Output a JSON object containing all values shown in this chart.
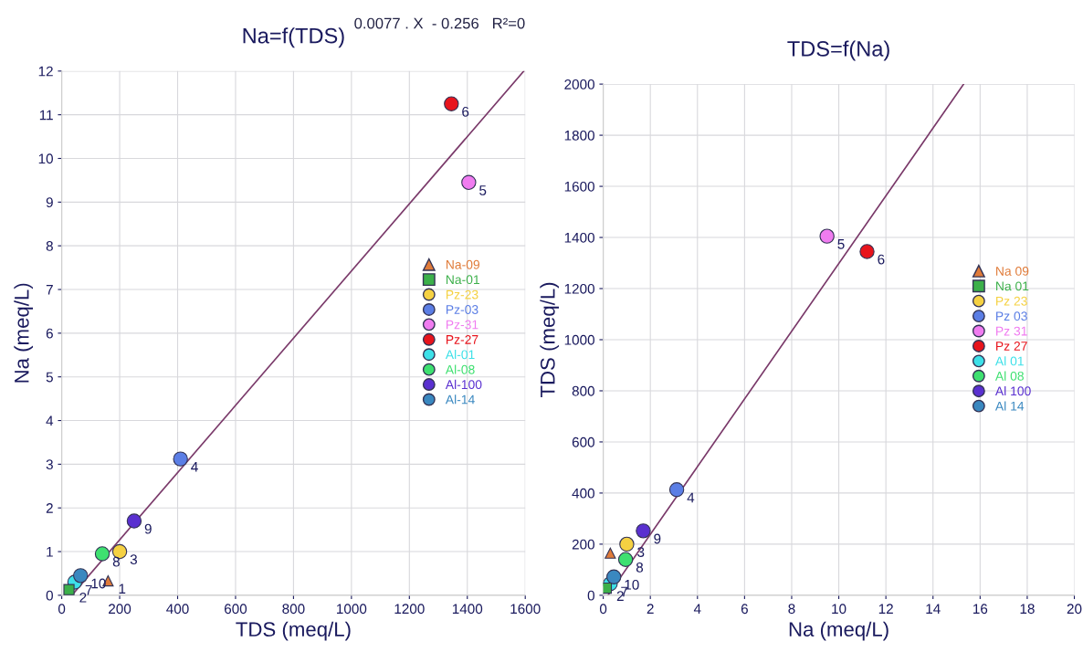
{
  "chart_data": [
    {
      "type": "scatter",
      "title": "Na=f(TDS)",
      "xlabel": "TDS (meq/L)",
      "ylabel": "Na (meq/L)",
      "xlim": [
        0,
        1600
      ],
      "xticks": [
        0,
        200,
        400,
        600,
        800,
        1000,
        1200,
        1400,
        1600
      ],
      "ylim": [
        0,
        12
      ],
      "yticks": [
        0,
        1,
        2,
        3,
        4,
        5,
        6,
        7,
        8,
        9,
        10,
        11,
        12
      ],
      "grid": true,
      "legend": "right",
      "series": [
        {
          "name": "Na-09",
          "color": "#e07b39",
          "marker": "triangle",
          "x": [
            160
          ],
          "values": [
            0.33
          ]
        },
        {
          "name": "Na-01",
          "color": "#3cb04a",
          "marker": "square",
          "x": [
            25
          ],
          "values": [
            0.13
          ]
        },
        {
          "name": "Pz-23",
          "color": "#f5d142",
          "x": [
            200
          ],
          "values": [
            1.0
          ]
        },
        {
          "name": "Pz-03",
          "color": "#5b7ee5",
          "x": [
            410
          ],
          "values": [
            3.12
          ]
        },
        {
          "name": "Pz-31",
          "color": "#f07cf0",
          "marker": "circle",
          "x": [
            1405
          ],
          "values": [
            9.45
          ]
        },
        {
          "name": "Pz-27",
          "color": "#e8141c",
          "marker": "circle",
          "x": [
            1345
          ],
          "values": [
            11.25
          ]
        },
        {
          "name": "Al-01",
          "color": "#3de0e8",
          "marker": "circle",
          "x": [
            45
          ],
          "values": [
            0.3
          ]
        },
        {
          "name": "Al-08",
          "color": "#3ee070",
          "marker": "circle",
          "x": [
            140
          ],
          "values": [
            0.95
          ]
        },
        {
          "name": "Al-100",
          "color": "#5a30d0",
          "marker": "circle",
          "x": [
            250
          ],
          "values": [
            1.7
          ]
        },
        {
          "name": "Al-14",
          "color": "#3a88c0",
          "marker": "circle",
          "x": [
            65
          ],
          "values": [
            0.45
          ]
        },
        {
          "type": "line",
          "color": "#7a3a6a",
          "marker": "none",
          "x": [
            35,
            1595
          ],
          "values": [
            0,
            12
          ]
        }
      ],
      "annotations": [
        "0.0077 . X  - 0.256   R²=0",
        {
          "text": "1",
          "x": 160,
          "y": 0.33
        },
        {
          "text": "2",
          "x": 25,
          "y": 0.13
        },
        {
          "text": "3",
          "x": 200,
          "y": 1.0
        },
        {
          "text": "4",
          "x": 410,
          "y": 3.12
        },
        {
          "text": "5",
          "x": 1405,
          "y": 9.45
        },
        {
          "text": "6",
          "x": 1345,
          "y": 11.25
        },
        {
          "text": "7",
          "x": 45,
          "y": 0.3
        },
        {
          "text": "8",
          "x": 140,
          "y": 0.95
        },
        {
          "text": "9",
          "x": 250,
          "y": 1.7
        },
        {
          "text": "10",
          "x": 65,
          "y": 0.45
        }
      ]
    },
    {
      "type": "scatter",
      "title": "TDS=f(Na)",
      "xlabel": "Na (meq/L)",
      "ylabel": "TDS (meq/L)",
      "xlim": [
        0,
        20
      ],
      "xticks": [
        0,
        2,
        4,
        6,
        8,
        10,
        12,
        14,
        16,
        18,
        20
      ],
      "ylim": [
        0,
        2000
      ],
      "yticks": [
        0,
        200,
        400,
        600,
        800,
        1000,
        1200,
        1400,
        1600,
        1800,
        2000
      ],
      "grid": true,
      "legend": "right",
      "series": [
        {
          "name": "Na 09",
          "color": "#e07b39",
          "marker": "triangle",
          "x": [
            0.3
          ],
          "values": [
            165
          ]
        },
        {
          "name": "Na 01",
          "color": "#3cb04a",
          "marker": "square",
          "x": [
            0.13
          ],
          "values": [
            28
          ]
        },
        {
          "name": "Pz 23",
          "color": "#f5d142",
          "x": [
            1.0
          ],
          "values": [
            200
          ]
        },
        {
          "name": "Pz 03",
          "color": "#5b7ee5",
          "x": [
            3.12
          ],
          "values": [
            413
          ]
        },
        {
          "name": "Pz 31",
          "color": "#f07cf0",
          "marker": "circle",
          "x": [
            9.5
          ],
          "values": [
            1405
          ]
        },
        {
          "name": "Pz 27",
          "color": "#e8141c",
          "marker": "circle",
          "x": [
            11.2
          ],
          "values": [
            1345
          ]
        },
        {
          "name": "Al 01",
          "color": "#3de0e8",
          "marker": "circle",
          "x": [
            0.3
          ],
          "values": [
            45
          ]
        },
        {
          "name": "Al 08",
          "color": "#3ee070",
          "marker": "circle",
          "x": [
            0.95
          ],
          "values": [
            140
          ]
        },
        {
          "name": "Al 100",
          "color": "#5a30d0",
          "marker": "circle",
          "x": [
            1.7
          ],
          "values": [
            252
          ]
        },
        {
          "name": "Al 14",
          "color": "#3a88c0",
          "marker": "circle",
          "x": [
            0.45
          ],
          "values": [
            72
          ]
        },
        {
          "type": "line",
          "color": "#7a3a6a",
          "marker": "none",
          "x": [
            0.2,
            15.3
          ],
          "values": [
            0,
            2000
          ]
        }
      ],
      "annotations": [
        {
          "text": "2",
          "x": 0.13,
          "y": 28
        },
        {
          "text": "3",
          "x": 1.0,
          "y": 200
        },
        {
          "text": "4",
          "x": 3.12,
          "y": 413
        },
        {
          "text": "5",
          "x": 9.5,
          "y": 1405
        },
        {
          "text": "6",
          "x": 11.2,
          "y": 1345
        },
        {
          "text": "7",
          "x": 0.3,
          "y": 45
        },
        {
          "text": "8",
          "x": 0.95,
          "y": 140
        },
        {
          "text": "9",
          "x": 1.7,
          "y": 252
        },
        {
          "text": "10",
          "x": 0.45,
          "y": 72
        }
      ]
    }
  ]
}
